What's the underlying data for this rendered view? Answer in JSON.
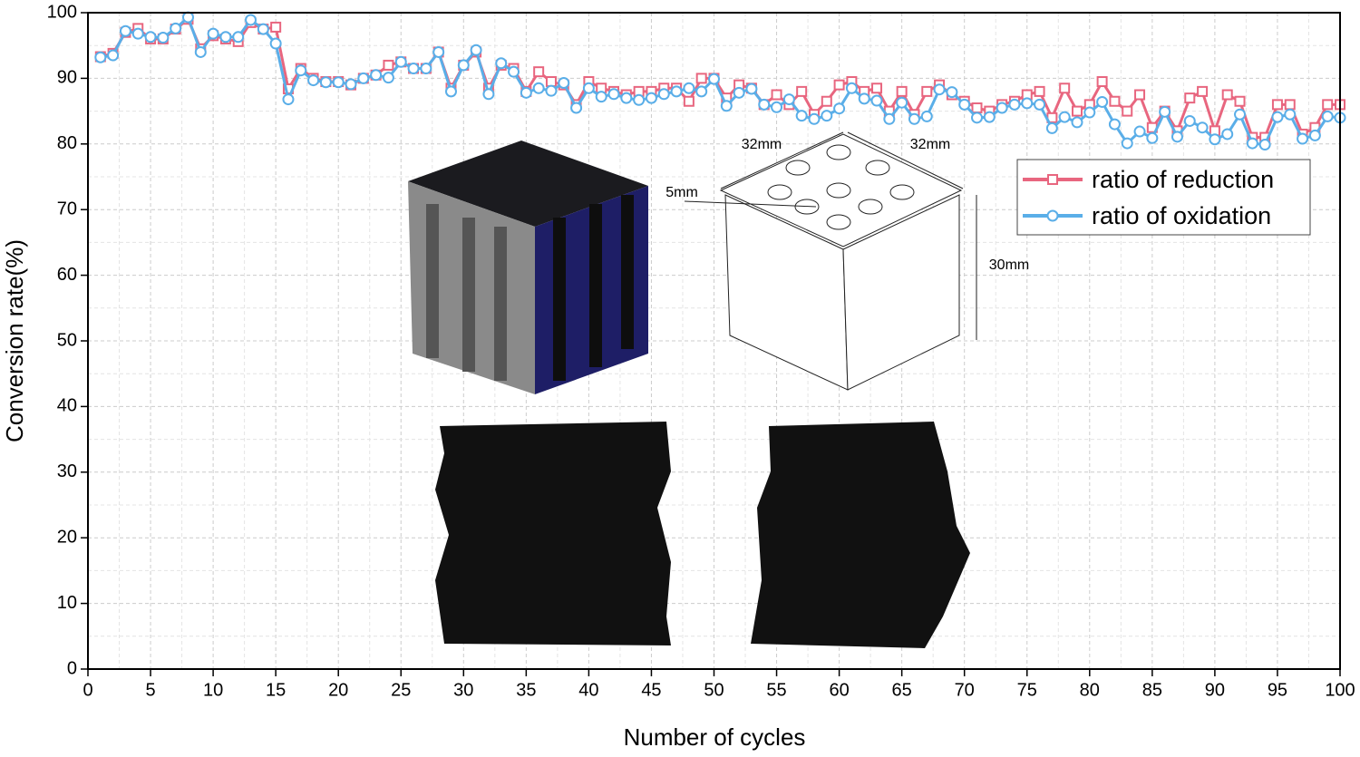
{
  "chart_data": {
    "type": "line",
    "xlabel": "Number of cycles",
    "ylabel": "Conversion rate(%)",
    "x": [
      1,
      2,
      3,
      4,
      5,
      6,
      7,
      8,
      9,
      10,
      11,
      12,
      13,
      14,
      15,
      16,
      17,
      18,
      19,
      20,
      21,
      22,
      23,
      24,
      25,
      26,
      27,
      28,
      29,
      30,
      31,
      32,
      33,
      34,
      35,
      36,
      37,
      38,
      39,
      40,
      41,
      42,
      43,
      44,
      45,
      46,
      47,
      48,
      49,
      50,
      51,
      52,
      53,
      54,
      55,
      56,
      57,
      58,
      59,
      60,
      61,
      62,
      63,
      64,
      65,
      66,
      67,
      68,
      69,
      70,
      71,
      72,
      73,
      74,
      75,
      76,
      77,
      78,
      79,
      80,
      81,
      82,
      83,
      84,
      85,
      86,
      87,
      88,
      89,
      90,
      91,
      92,
      93,
      94,
      95,
      96,
      97,
      98,
      99,
      100
    ],
    "series": [
      {
        "name": "ratio of reduction",
        "color": "#e8667f",
        "marker": "square",
        "values": [
          93.3,
          93.8,
          97,
          97.6,
          96,
          96,
          97.5,
          99,
          94.5,
          96.5,
          96,
          95.6,
          98.5,
          97.5,
          97.8,
          88.4,
          91.5,
          90,
          89.5,
          89.5,
          89,
          90,
          90.5,
          92,
          92.5,
          91.5,
          91.5,
          94,
          88.5,
          92,
          94,
          88.5,
          92,
          91.5,
          88,
          91,
          89.5,
          89,
          86,
          89.5,
          88.5,
          88,
          87.5,
          88,
          88,
          88.5,
          88.5,
          86.5,
          90,
          90,
          87,
          89,
          88.5,
          86,
          87.5,
          86,
          88,
          84.5,
          86.5,
          89,
          89.5,
          88,
          88.5,
          85,
          88,
          84.5,
          88,
          89,
          87.5,
          86.5,
          85.5,
          85,
          86,
          86.5,
          87.5,
          88,
          84,
          88.5,
          85,
          86,
          89.5,
          86.5,
          85,
          87.5,
          82.5,
          85,
          82,
          87,
          88,
          82,
          87.5,
          86.5,
          81,
          81,
          86,
          86,
          81.5,
          82.5,
          86,
          86
        ]
      },
      {
        "name": "ratio of oxidation",
        "color": "#5aaee8",
        "marker": "circle",
        "values": [
          93.2,
          93.5,
          97.2,
          96.8,
          96.3,
          96.2,
          97.6,
          99.3,
          94,
          96.8,
          96.3,
          96.3,
          98.9,
          97.5,
          95.3,
          86.8,
          91.2,
          89.7,
          89.4,
          89.4,
          89.1,
          90,
          90.5,
          90.1,
          92.5,
          91.5,
          91.5,
          94,
          88,
          92,
          94.3,
          87.6,
          92.3,
          91,
          87.8,
          88.5,
          88.1,
          89.3,
          85.5,
          88.5,
          87.2,
          87.6,
          87,
          86.7,
          87,
          87.6,
          88,
          88.5,
          88,
          89.9,
          85.8,
          87.8,
          88.4,
          86,
          85.6,
          86.8,
          84.3,
          83.8,
          84.3,
          85.4,
          88.5,
          86.9,
          86.6,
          83.8,
          86.3,
          83.8,
          84.2,
          88.3,
          87.9,
          86,
          84,
          84.1,
          85.5,
          86,
          86.2,
          86,
          82.4,
          84.1,
          83.3,
          84.8,
          86.4,
          83,
          80.1,
          81.9,
          80.9,
          84.9,
          81.1,
          83.5,
          82.5,
          80.7,
          81.5,
          84.5,
          80.1,
          79.9,
          84.1,
          84.5,
          80.8,
          81.3,
          84.2,
          84
        ]
      }
    ],
    "xlim": [
      0,
      100
    ],
    "ylim": [
      0,
      100
    ],
    "xticks": [
      0,
      5,
      10,
      15,
      20,
      25,
      30,
      35,
      40,
      45,
      50,
      55,
      60,
      65,
      70,
      75,
      80,
      85,
      90,
      95,
      100
    ],
    "yticks": [
      0,
      10,
      20,
      30,
      40,
      50,
      60,
      70,
      80,
      90,
      100
    ],
    "grid": true,
    "legend": "upper right",
    "annotations": [
      "32mm",
      "32mm",
      "5mm",
      "30mm"
    ]
  }
}
